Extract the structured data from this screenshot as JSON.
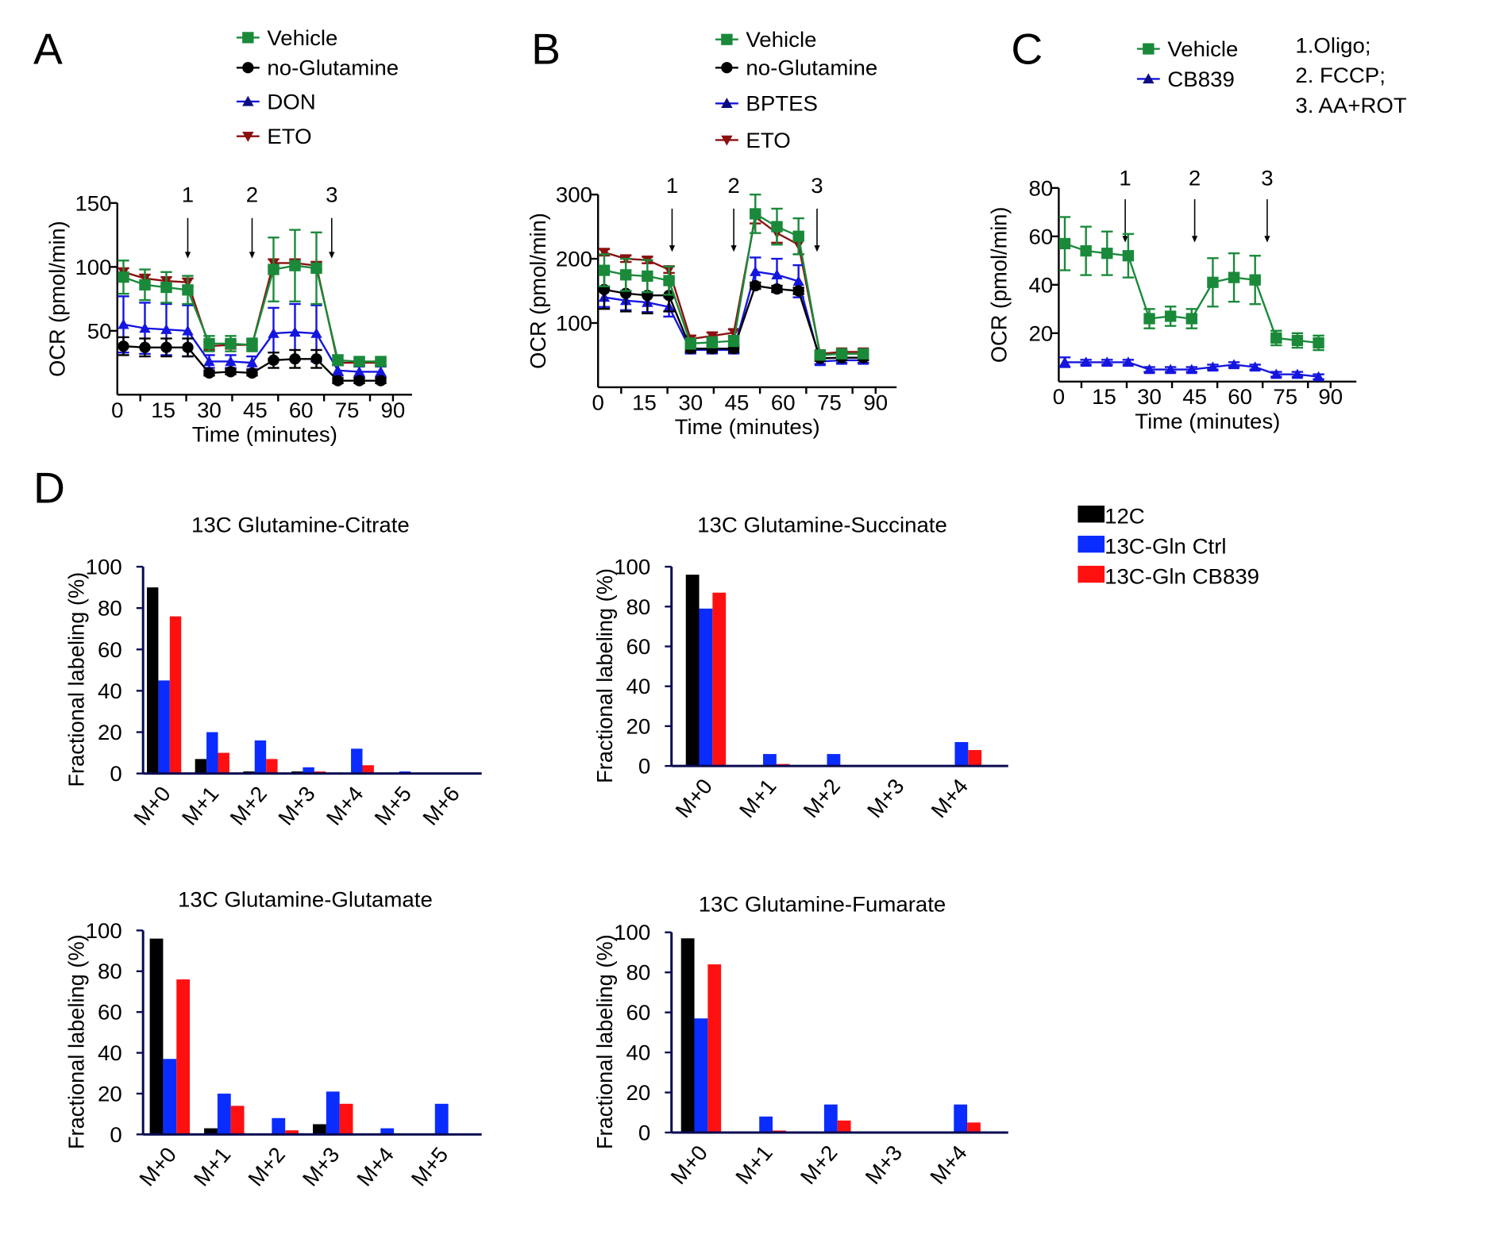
{
  "panel_letters": [
    "A",
    "B",
    "C",
    "D"
  ],
  "injection_notes": [
    "1.Oligo;",
    "2. FCCP;",
    "3. AA+ROT"
  ],
  "colors": {
    "vehicle": "#1a8a3a",
    "no_glutamine": "#000000",
    "inhibitor": "#1515e0",
    "inhibitor_marker": "#0d0d80",
    "eto": "#8b1010",
    "bar_12C": "#000000",
    "bar_ctrl": "#0a2cff",
    "bar_cb839": "#ff1010",
    "axis": "#0a0a50"
  },
  "chart_data": [
    {
      "panel": "A",
      "type": "line",
      "xlabel": "Time (minutes)",
      "ylabel": "OCR (pmol/min)",
      "xlim": [
        0,
        90
      ],
      "ylim": [
        0,
        150
      ],
      "xticks": [
        0,
        15,
        30,
        45,
        60,
        75,
        90
      ],
      "yticks": [
        50,
        100,
        150
      ],
      "injections": [
        {
          "label": "1",
          "time": 23
        },
        {
          "label": "2",
          "time": 44
        },
        {
          "label": "3",
          "time": 70
        }
      ],
      "x": [
        2,
        9,
        16,
        23,
        30,
        37,
        44,
        51,
        58,
        65,
        72,
        79,
        86
      ],
      "series": [
        {
          "name": "Vehicle",
          "marker": "square",
          "color": "#1a8a3a",
          "values": [
            92,
            86,
            84,
            82,
            40,
            40,
            39,
            98,
            101,
            99,
            27,
            26,
            26
          ],
          "error": [
            13,
            12,
            12,
            11,
            6,
            6,
            5,
            25,
            28,
            28,
            4,
            3,
            3
          ]
        },
        {
          "name": "no-Glutamine",
          "marker": "circle",
          "color": "#000000",
          "values": [
            38,
            37,
            37,
            37,
            17,
            18,
            17,
            27,
            28,
            28,
            11,
            11,
            11
          ],
          "error": [
            7,
            7,
            7,
            7,
            2,
            2,
            2,
            6,
            7,
            7,
            2,
            2,
            2
          ]
        },
        {
          "name": "DON",
          "marker": "triangle-up",
          "color": "#1515e0",
          "values": [
            55,
            52,
            51,
            50,
            26,
            26,
            25,
            48,
            49,
            48,
            19,
            18,
            18
          ],
          "error": [
            22,
            20,
            20,
            20,
            5,
            5,
            5,
            20,
            22,
            22,
            4,
            4,
            4
          ]
        },
        {
          "name": "ETO",
          "marker": "triangle-down",
          "color": "#8b1010",
          "values": [
            96,
            91,
            89,
            88,
            38,
            39,
            39,
            103,
            103,
            101,
            25,
            25,
            25
          ],
          "error": [
            3,
            3,
            3,
            3,
            3,
            3,
            3,
            3,
            3,
            3,
            2,
            2,
            2
          ]
        }
      ]
    },
    {
      "panel": "B",
      "type": "line",
      "xlabel": "Time (minutes)",
      "ylabel": "OCR (pmol/min)",
      "xlim": [
        0,
        90
      ],
      "ylim": [
        0,
        300
      ],
      "xticks": [
        0,
        15,
        30,
        45,
        60,
        75,
        90
      ],
      "yticks": [
        100,
        200,
        300
      ],
      "injections": [
        {
          "label": "1",
          "time": 24
        },
        {
          "label": "2",
          "time": 44
        },
        {
          "label": "3",
          "time": 71
        }
      ],
      "x": [
        2,
        9,
        16,
        23,
        30,
        37,
        44,
        51,
        58,
        65,
        72,
        79,
        86
      ],
      "series": [
        {
          "name": "Vehicle",
          "marker": "square",
          "color": "#1a8a3a",
          "values": [
            182,
            175,
            173,
            166,
            68,
            70,
            72,
            270,
            250,
            235,
            50,
            52,
            52
          ],
          "error": [
            25,
            25,
            25,
            22,
            8,
            8,
            8,
            30,
            28,
            28,
            5,
            5,
            5
          ]
        },
        {
          "name": "no-Glutamine",
          "marker": "circle",
          "color": "#000000",
          "values": [
            152,
            146,
            143,
            143,
            60,
            60,
            60,
            158,
            153,
            150,
            45,
            46,
            46
          ],
          "error": [
            30,
            28,
            28,
            25,
            5,
            5,
            5,
            5,
            5,
            5,
            4,
            4,
            4
          ]
        },
        {
          "name": "BPTES",
          "marker": "triangle-up",
          "color": "#1515e0",
          "values": [
            140,
            135,
            132,
            125,
            58,
            58,
            58,
            180,
            175,
            165,
            40,
            42,
            42
          ],
          "error": [
            15,
            15,
            15,
            15,
            5,
            5,
            5,
            22,
            25,
            25,
            4,
            4,
            4
          ]
        },
        {
          "name": "ETO",
          "marker": "triangle-down",
          "color": "#8b1010",
          "values": [
            210,
            200,
            198,
            183,
            75,
            80,
            85,
            265,
            240,
            222,
            52,
            55,
            55
          ],
          "error": [
            5,
            5,
            5,
            5,
            5,
            5,
            5,
            10,
            15,
            15,
            3,
            3,
            3
          ]
        }
      ]
    },
    {
      "panel": "C",
      "type": "line",
      "xlabel": "Time (minutes)",
      "ylabel": "OCR (pmol/min)",
      "xlim": [
        0,
        90
      ],
      "ylim": [
        0,
        80
      ],
      "xticks": [
        0,
        15,
        30,
        45,
        60,
        75,
        90
      ],
      "yticks": [
        20,
        40,
        60,
        80
      ],
      "injections": [
        {
          "label": "1",
          "time": 22
        },
        {
          "label": "2",
          "time": 45
        },
        {
          "label": "3",
          "time": 69
        }
      ],
      "x": [
        2,
        9,
        16,
        23,
        30,
        37,
        44,
        51,
        58,
        65,
        72,
        79,
        86
      ],
      "series": [
        {
          "name": "Vehicle",
          "marker": "square",
          "color": "#1a8a3a",
          "values": [
            57,
            54,
            53,
            52,
            26,
            27,
            26,
            41,
            43,
            42,
            18,
            17,
            16
          ],
          "error": [
            11,
            10,
            9,
            9,
            4,
            4,
            4,
            10,
            10,
            10,
            3,
            3,
            3
          ]
        },
        {
          "name": "CB839",
          "marker": "triangle-up",
          "color": "#1515e0",
          "values": [
            8,
            8,
            8,
            8,
            5,
            5,
            5,
            6,
            7,
            6,
            3,
            3,
            2
          ],
          "error": [
            2,
            1,
            1,
            1,
            1,
            1,
            1,
            1,
            1,
            1,
            1,
            1,
            1
          ]
        }
      ]
    },
    {
      "panel": "D",
      "type": "bar",
      "title": "13C Glutamine-Citrate",
      "ylabel": "Fractional labeling (%)",
      "ylim": [
        0,
        100
      ],
      "yticks": [
        0,
        20,
        40,
        60,
        80,
        100
      ],
      "categories": [
        "M+0",
        "M+1",
        "M+2",
        "M+3",
        "M+4",
        "M+5",
        "M+6"
      ],
      "series": [
        {
          "name": "12C",
          "color": "#000000",
          "values": [
            90,
            7,
            1,
            1,
            0,
            0,
            0
          ]
        },
        {
          "name": "13C-Gln Ctrl",
          "color": "#0a2cff",
          "values": [
            45,
            20,
            16,
            3,
            12,
            1,
            0
          ]
        },
        {
          "name": "13C-Gln CB839",
          "color": "#ff1010",
          "values": [
            76,
            10,
            7,
            1,
            4,
            0,
            0
          ]
        }
      ]
    },
    {
      "panel": "D",
      "type": "bar",
      "title": "13C Glutamine-Succinate",
      "ylabel": "Fractional labeling (%)",
      "ylim": [
        0,
        100
      ],
      "yticks": [
        0,
        20,
        40,
        60,
        80,
        100
      ],
      "categories": [
        "M+0",
        "M+1",
        "M+2",
        "M+3",
        "M+4"
      ],
      "series": [
        {
          "name": "12C",
          "color": "#000000",
          "values": [
            96,
            0,
            0,
            0,
            0
          ]
        },
        {
          "name": "13C-Gln Ctrl",
          "color": "#0a2cff",
          "values": [
            79,
            6,
            6,
            0,
            12
          ]
        },
        {
          "name": "13C-Gln CB839",
          "color": "#ff1010",
          "values": [
            87,
            1,
            0,
            0,
            8
          ]
        }
      ]
    },
    {
      "panel": "D",
      "type": "bar",
      "title": "13C Glutamine-Glutamate",
      "ylabel": "Fractional labeling (%)",
      "ylim": [
        0,
        100
      ],
      "yticks": [
        0,
        20,
        40,
        60,
        80,
        100
      ],
      "categories": [
        "M+0",
        "M+1",
        "M+2",
        "M+3",
        "M+4",
        "M+5"
      ],
      "series": [
        {
          "name": "12C",
          "color": "#000000",
          "values": [
            96,
            3,
            0,
            5,
            0,
            0
          ]
        },
        {
          "name": "13C-Gln Ctrl",
          "color": "#0a2cff",
          "values": [
            37,
            20,
            8,
            21,
            3,
            15
          ]
        },
        {
          "name": "13C-Gln CB839",
          "color": "#ff1010",
          "values": [
            76,
            14,
            2,
            15,
            0,
            0
          ]
        }
      ]
    },
    {
      "panel": "D",
      "type": "bar",
      "title": "13C Glutamine-Fumarate",
      "ylabel": "Fractional labeling (%)",
      "ylim": [
        0,
        100
      ],
      "yticks": [
        0,
        20,
        40,
        60,
        80,
        100
      ],
      "categories": [
        "M+0",
        "M+1",
        "M+2",
        "M+3",
        "M+4"
      ],
      "series": [
        {
          "name": "12C",
          "color": "#000000",
          "values": [
            97,
            0,
            0.5,
            0,
            0
          ]
        },
        {
          "name": "13C-Gln Ctrl",
          "color": "#0a2cff",
          "values": [
            57,
            8,
            14,
            0,
            14
          ]
        },
        {
          "name": "13C-Gln CB839",
          "color": "#ff1010",
          "values": [
            84,
            1,
            6,
            0,
            5
          ]
        }
      ]
    }
  ]
}
